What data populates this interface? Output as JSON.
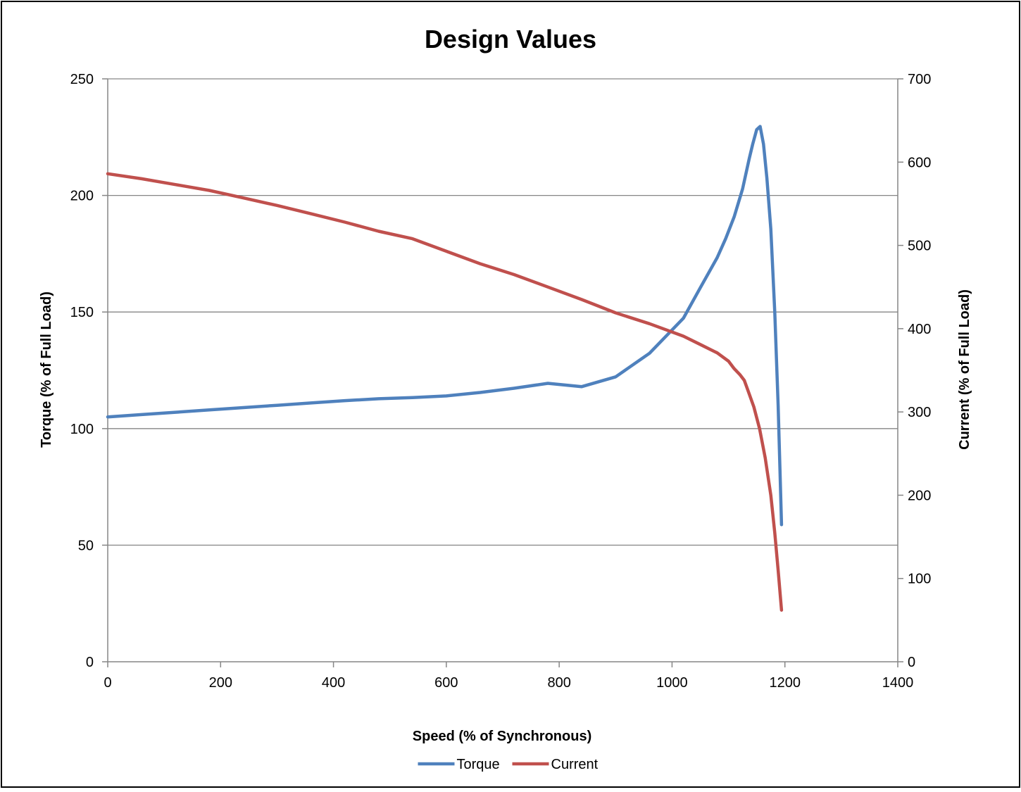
{
  "chart_data": {
    "type": "line",
    "title": "Design Values",
    "xlabel": "Speed (% of Synchronous)",
    "ylabel": "Torque (% of Full Load)",
    "y2label": "Current (% of Full Load)",
    "xlim": [
      0,
      1400
    ],
    "ylim": [
      0,
      250
    ],
    "y2lim": [
      0,
      700
    ],
    "x_ticks": [
      "0",
      "200",
      "400",
      "600",
      "800",
      "1000",
      "1200",
      "1400"
    ],
    "y_ticks": [
      "0",
      "50",
      "100",
      "150",
      "200",
      "250"
    ],
    "y2_ticks": [
      "0",
      "100",
      "200",
      "300",
      "400",
      "500",
      "600",
      "700"
    ],
    "grid": true,
    "legend_position": "bottom",
    "series": [
      {
        "name": "Torque",
        "axis": "left",
        "color": "#4f81bd",
        "points": [
          [
            0,
            105
          ],
          [
            60,
            106
          ],
          [
            120,
            107
          ],
          [
            180,
            108
          ],
          [
            240,
            109
          ],
          [
            300,
            110
          ],
          [
            360,
            111
          ],
          [
            420,
            112
          ],
          [
            480,
            112.8
          ],
          [
            540,
            113.3
          ],
          [
            600,
            114
          ],
          [
            660,
            115.5
          ],
          [
            720,
            117.3
          ],
          [
            780,
            119.4
          ],
          [
            840,
            118
          ],
          [
            900,
            122.2
          ],
          [
            960,
            132.3
          ],
          [
            1020,
            147.3
          ],
          [
            1050,
            160.4
          ],
          [
            1080,
            173.3
          ],
          [
            1095,
            181.5
          ],
          [
            1110,
            190.8
          ],
          [
            1125,
            202.8
          ],
          [
            1137,
            216
          ],
          [
            1143,
            222
          ],
          [
            1150,
            228.2
          ],
          [
            1156,
            229.6
          ],
          [
            1162,
            222
          ],
          [
            1168,
            207.5
          ],
          [
            1175,
            185.6
          ],
          [
            1182,
            150
          ],
          [
            1188,
            110
          ],
          [
            1194,
            58.8
          ]
        ]
      },
      {
        "name": "Current",
        "axis": "right",
        "color": "#c0504d",
        "points": [
          [
            0,
            586
          ],
          [
            60,
            580
          ],
          [
            120,
            573
          ],
          [
            180,
            566
          ],
          [
            240,
            557
          ],
          [
            300,
            548
          ],
          [
            360,
            538
          ],
          [
            420,
            528
          ],
          [
            480,
            517
          ],
          [
            540,
            508
          ],
          [
            600,
            493
          ],
          [
            660,
            478
          ],
          [
            720,
            465
          ],
          [
            780,
            450
          ],
          [
            840,
            435
          ],
          [
            900,
            419
          ],
          [
            960,
            406
          ],
          [
            1020,
            391
          ],
          [
            1050,
            381
          ],
          [
            1080,
            371
          ],
          [
            1100,
            361
          ],
          [
            1110,
            352
          ],
          [
            1120,
            345
          ],
          [
            1128,
            338
          ],
          [
            1135,
            325
          ],
          [
            1145,
            306
          ],
          [
            1155,
            280
          ],
          [
            1165,
            245
          ],
          [
            1175,
            200
          ],
          [
            1182,
            155
          ],
          [
            1188,
            110
          ],
          [
            1194,
            62
          ]
        ]
      }
    ]
  }
}
